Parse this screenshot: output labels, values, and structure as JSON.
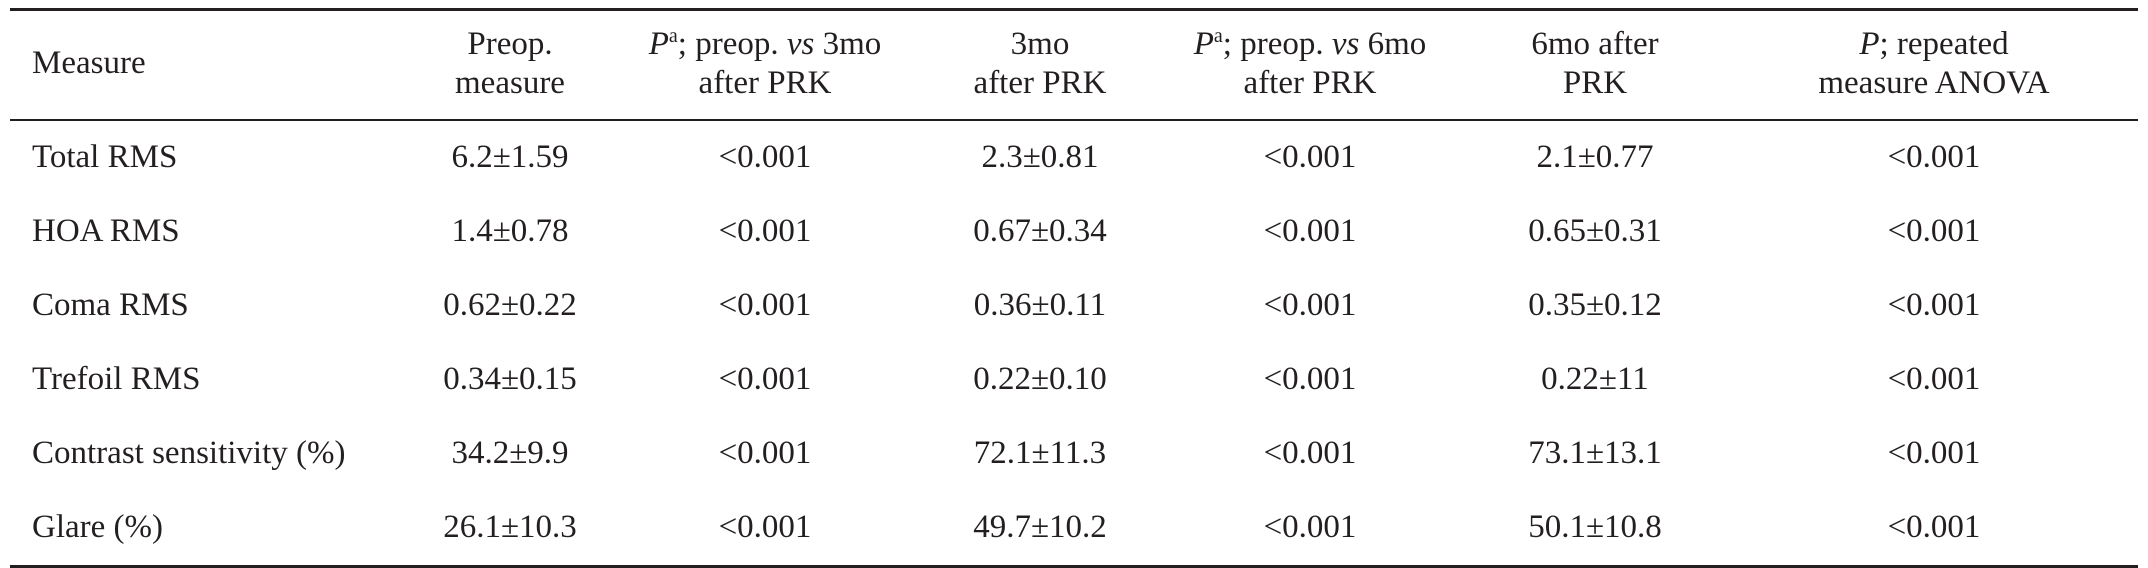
{
  "table": {
    "headers": [
      {
        "lines": [
          {
            "parts": [
              {
                "text": "Measure"
              }
            ]
          }
        ]
      },
      {
        "lines": [
          {
            "parts": [
              {
                "text": "Preop."
              }
            ]
          },
          {
            "parts": [
              {
                "text": "measure"
              }
            ]
          }
        ]
      },
      {
        "lines": [
          {
            "parts": [
              {
                "text": "P",
                "italic": true
              },
              {
                "text": "a",
                "sup": true
              },
              {
                "text": "; preop. "
              },
              {
                "text": "vs",
                "italic": true
              },
              {
                "text": " 3mo"
              }
            ]
          },
          {
            "parts": [
              {
                "text": "after PRK"
              }
            ]
          }
        ]
      },
      {
        "lines": [
          {
            "parts": [
              {
                "text": "3mo"
              }
            ]
          },
          {
            "parts": [
              {
                "text": "after PRK"
              }
            ]
          }
        ]
      },
      {
        "lines": [
          {
            "parts": [
              {
                "text": "P",
                "italic": true
              },
              {
                "text": "a",
                "sup": true
              },
              {
                "text": "; preop. "
              },
              {
                "text": "vs",
                "italic": true
              },
              {
                "text": " 6mo"
              }
            ]
          },
          {
            "parts": [
              {
                "text": "after PRK"
              }
            ]
          }
        ]
      },
      {
        "lines": [
          {
            "parts": [
              {
                "text": "6mo after"
              }
            ]
          },
          {
            "parts": [
              {
                "text": "PRK"
              }
            ]
          }
        ]
      },
      {
        "lines": [
          {
            "parts": [
              {
                "text": "P",
                "italic": true
              },
              {
                "text": "; repeated"
              }
            ]
          },
          {
            "parts": [
              {
                "text": "measure ANOVA"
              }
            ]
          }
        ]
      }
    ],
    "rows": [
      [
        "Total RMS",
        "6.2±1.59",
        "<0.001",
        "2.3±0.81",
        "<0.001",
        "2.1±0.77",
        "<0.001"
      ],
      [
        "HOA RMS",
        "1.4±0.78",
        "<0.001",
        "0.67±0.34",
        "<0.001",
        "0.65±0.31",
        "<0.001"
      ],
      [
        "Coma RMS",
        "0.62±0.22",
        "<0.001",
        "0.36±0.11",
        "<0.001",
        "0.35±0.12",
        "<0.001"
      ],
      [
        "Trefoil RMS",
        "0.34±0.15",
        "<0.001",
        "0.22±0.10",
        "<0.001",
        "0.22±11",
        "<0.001"
      ],
      [
        "Contrast sensitivity (%)",
        "34.2±9.9",
        "<0.001",
        "72.1±11.3",
        "<0.001",
        "73.1±13.1",
        "<0.001"
      ],
      [
        "Glare (%)",
        "26.1±10.3",
        "<0.001",
        "49.7±10.2",
        "<0.001",
        "50.1±10.8",
        "<0.001"
      ]
    ]
  }
}
